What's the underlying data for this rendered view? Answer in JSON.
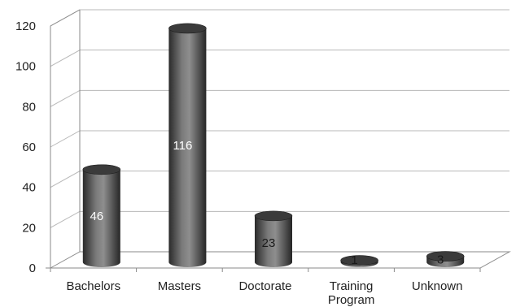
{
  "chart_data": {
    "type": "bar",
    "style": "3d-cylinder",
    "categories": [
      "Bachelors",
      "Masters",
      "Doctorate",
      "Training Program",
      "Unknown"
    ],
    "category_lines": [
      [
        "Bachelors"
      ],
      [
        "Masters"
      ],
      [
        "Doctorate"
      ],
      [
        "Training",
        "Program"
      ],
      [
        "Unknown"
      ]
    ],
    "values": [
      46,
      116,
      23,
      1,
      3
    ],
    "data_labels": [
      "46",
      "116",
      "23",
      "1",
      "3"
    ],
    "ylim": [
      0,
      120
    ],
    "yticks": [
      0,
      20,
      40,
      60,
      80,
      100,
      120
    ],
    "grid": true,
    "legend": "none",
    "title": "",
    "xlabel": "",
    "ylabel": "",
    "colors": {
      "bar_dark": "#2e2e2e",
      "bar_mid": "#6a6a6a",
      "bar_light": "#8c8c8c",
      "bar_top": "#3b3b3b",
      "label_light": "#ffffff",
      "label_dark": "#1a1a1a"
    }
  }
}
